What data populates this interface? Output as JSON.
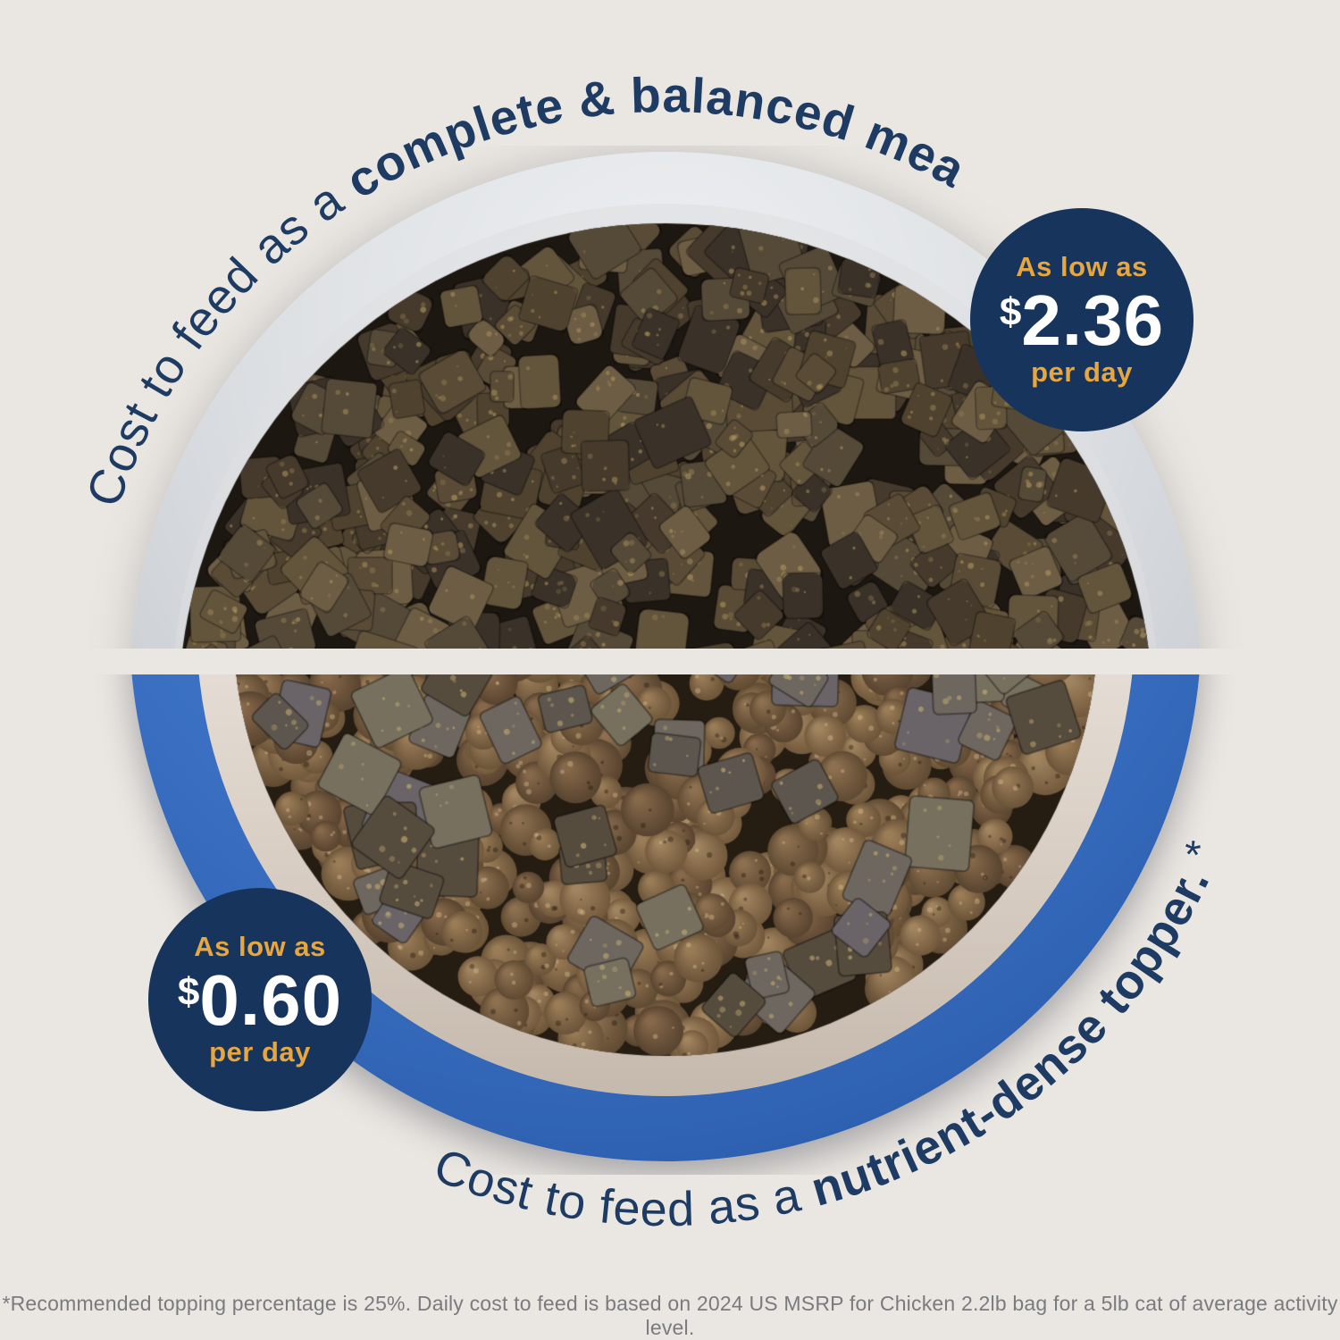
{
  "colors": {
    "background": "#eae6e1",
    "navy": "#1e3c63",
    "badge_navy": "#17355c",
    "gold": "#e8a63e",
    "bowl_blue": "#2f62b2",
    "footnote_gray": "#7a7b7e"
  },
  "top_section": {
    "arc_text": {
      "regular": "Cost to feed as a ",
      "bold": "complete & balanced meal."
    },
    "badge": {
      "as_low_as": "As low as",
      "currency": "$",
      "amount": "2.36",
      "per_day": "per day"
    }
  },
  "bottom_section": {
    "arc_text": {
      "regular": "Cost to feed as a ",
      "bold": "nutrient-dense topper.",
      "suffix": "*"
    },
    "badge": {
      "as_low_as": "As low as",
      "currency": "$",
      "amount": "0.60",
      "per_day": "per day"
    }
  },
  "footnote": "*Recommended topping percentage is 25%. Daily cost to feed is based on 2024 US MSRP for Chicken 2.2lb bag for a 5lb cat of average activity level."
}
